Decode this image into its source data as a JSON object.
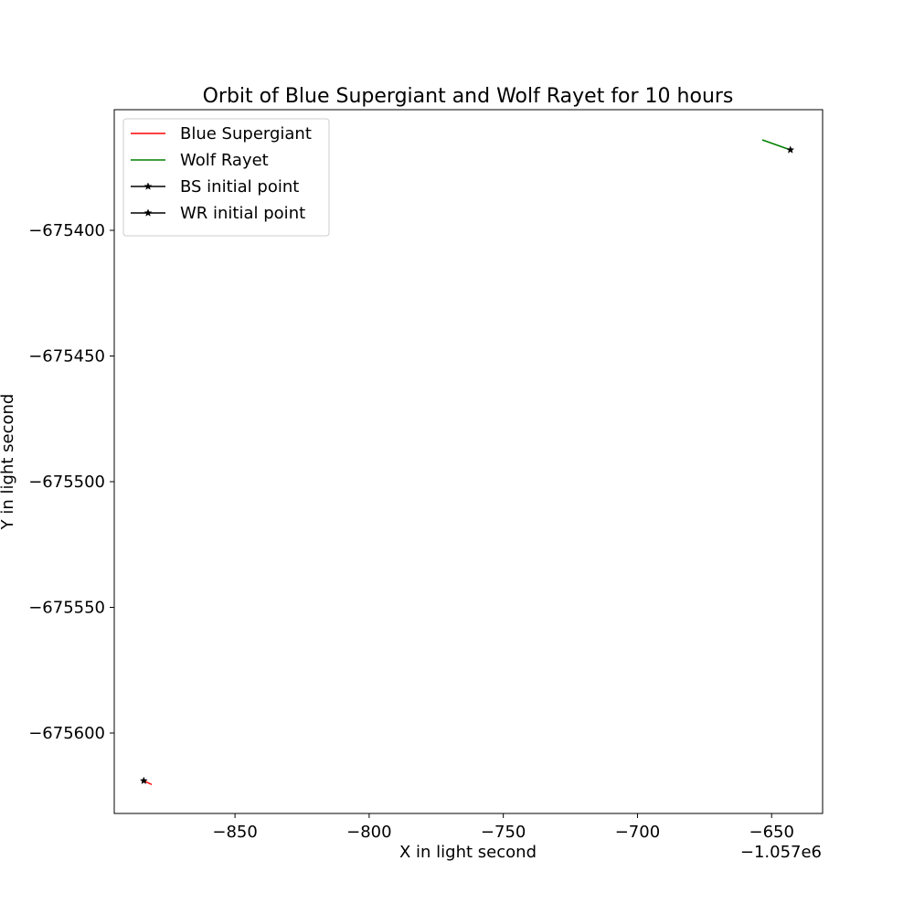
{
  "chart_data": {
    "type": "line",
    "title": "Orbit of Blue Supergiant and Wolf Rayet for 10 hours",
    "xlabel": "X in light second",
    "ylabel": "Y in light second",
    "x_offset_label": "−1.057e6",
    "x_offset": -1057000,
    "xlim": [
      -1057895,
      -1057631
    ],
    "ylim": [
      -675632,
      -675352
    ],
    "xticks": [
      -850,
      -800,
      -750,
      -700,
      -650
    ],
    "xtick_labels": [
      "−850",
      "−800",
      "−750",
      "−700",
      "−650"
    ],
    "yticks": [
      -675400,
      -675450,
      -675500,
      -675550,
      -675600
    ],
    "ytick_labels": [
      "−675400",
      "−675450",
      "−675500",
      "−675550",
      "−675600"
    ],
    "grid": false,
    "legend_position": "top-left",
    "series": [
      {
        "name": "Blue Supergiant",
        "color": "#ff0000",
        "marker": "none",
        "points": [
          [
            -1057884,
            -675619
          ],
          [
            -1057881,
            -675620.5
          ]
        ]
      },
      {
        "name": "Wolf Rayet",
        "color": "#008000",
        "marker": "none",
        "points": [
          [
            -1057643,
            -675368
          ],
          [
            -1057653.5,
            -675364
          ]
        ]
      },
      {
        "name": "BS initial point",
        "color": "#000000",
        "marker": "star",
        "points": [
          [
            -1057884,
            -675619
          ]
        ]
      },
      {
        "name": "WR initial point",
        "color": "#000000",
        "marker": "star",
        "points": [
          [
            -1057643,
            -675368
          ]
        ]
      }
    ]
  }
}
